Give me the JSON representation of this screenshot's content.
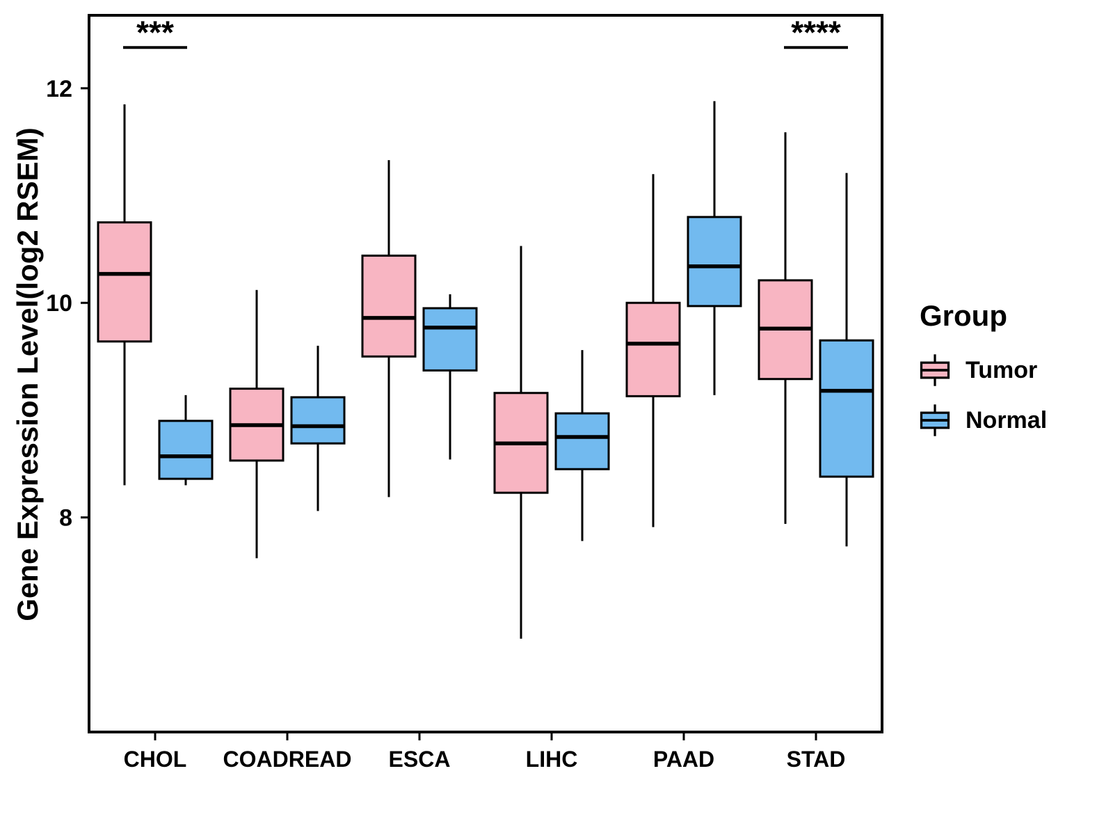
{
  "chart_data": {
    "type": "boxplot",
    "title": "",
    "xlabel": "",
    "ylabel": "Gene Expression Level(log2 RSEM)",
    "ylim": [
      6,
      12.68
    ],
    "yticks": [
      8,
      10,
      12
    ],
    "grid": false,
    "panel_border_color": "#000000",
    "categories": [
      "CHOL",
      "COADREAD",
      "ESCA",
      "LIHC",
      "PAAD",
      "STAD"
    ],
    "legend": {
      "title": "Group",
      "position": "right",
      "entries": [
        {
          "label": "Tumor",
          "color": "#F8B5C2"
        },
        {
          "label": "Normal",
          "color": "#72BAEF"
        }
      ]
    },
    "series": [
      {
        "name": "Tumor",
        "color": "#F8B5C2",
        "boxes": [
          {
            "category": "CHOL",
            "whisker_low": 8.3,
            "q1": 9.64,
            "median": 10.27,
            "q3": 10.75,
            "whisker_high": 11.85
          },
          {
            "category": "COADREAD",
            "whisker_low": 7.62,
            "q1": 8.53,
            "median": 8.86,
            "q3": 9.2,
            "whisker_high": 10.12
          },
          {
            "category": "ESCA",
            "whisker_low": 8.19,
            "q1": 9.5,
            "median": 9.86,
            "q3": 10.44,
            "whisker_high": 11.33
          },
          {
            "category": "LIHC",
            "whisker_low": 6.87,
            "q1": 8.23,
            "median": 8.69,
            "q3": 9.16,
            "whisker_high": 10.53
          },
          {
            "category": "PAAD",
            "whisker_low": 7.91,
            "q1": 9.13,
            "median": 9.62,
            "q3": 10.0,
            "whisker_high": 11.2
          },
          {
            "category": "STAD",
            "whisker_low": 7.94,
            "q1": 9.29,
            "median": 9.76,
            "q3": 10.21,
            "whisker_high": 11.59
          }
        ]
      },
      {
        "name": "Normal",
        "color": "#72BAEF",
        "boxes": [
          {
            "category": "CHOL",
            "whisker_low": 8.3,
            "q1": 8.36,
            "median": 8.57,
            "q3": 8.9,
            "whisker_high": 9.14
          },
          {
            "category": "COADREAD",
            "whisker_low": 8.06,
            "q1": 8.69,
            "median": 8.85,
            "q3": 9.12,
            "whisker_high": 9.6
          },
          {
            "category": "ESCA",
            "whisker_low": 8.54,
            "q1": 9.37,
            "median": 9.77,
            "q3": 9.95,
            "whisker_high": 10.08
          },
          {
            "category": "LIHC",
            "whisker_low": 7.78,
            "q1": 8.45,
            "median": 8.75,
            "q3": 8.97,
            "whisker_high": 9.56
          },
          {
            "category": "PAAD",
            "whisker_low": 9.14,
            "q1": 9.97,
            "median": 10.34,
            "q3": 10.8,
            "whisker_high": 11.88
          },
          {
            "category": "STAD",
            "whisker_low": 7.73,
            "q1": 8.38,
            "median": 9.18,
            "q3": 9.65,
            "whisker_high": 11.21
          }
        ]
      }
    ],
    "annotations": [
      {
        "category": "CHOL",
        "text": "***",
        "y": 12.38
      },
      {
        "category": "STAD",
        "text": "****",
        "y": 12.38
      }
    ]
  }
}
